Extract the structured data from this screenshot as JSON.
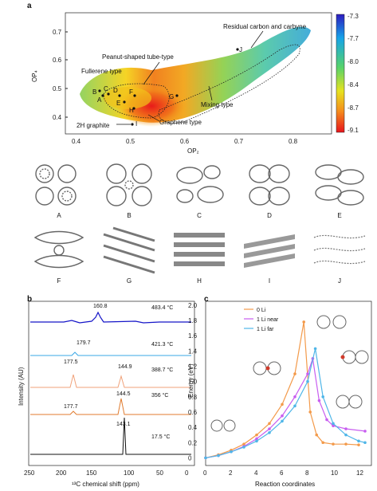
{
  "panel_a": {
    "letter": "a",
    "xlabel": "OP₂",
    "ylabel": "OP₄",
    "xticks": [
      "0.4",
      "0.5",
      "0.6",
      "0.7",
      "0.8"
    ],
    "yticks": [
      "0.4",
      "0.5",
      "0.6",
      "0.7"
    ],
    "colorbar_ticks": [
      "-7.3",
      "-7.7",
      "-8.0",
      "-8.4",
      "-8.7",
      "-9.1"
    ],
    "annotations": {
      "residual": "Residual carbon and carbyne",
      "peanut": "Peanut-shaped tube-type",
      "fullerene": "Fullerene type",
      "mixing": "Mixing type",
      "graphene": "Graphene type",
      "graphite": "2H graphite"
    },
    "points": [
      {
        "label": "A",
        "x": 0.445,
        "y": 0.47
      },
      {
        "label": "B",
        "x": 0.432,
        "y": 0.485
      },
      {
        "label": "C",
        "x": 0.455,
        "y": 0.495
      },
      {
        "label": "D",
        "x": 0.478,
        "y": 0.49
      },
      {
        "label": "E",
        "x": 0.49,
        "y": 0.46
      },
      {
        "label": "F",
        "x": 0.5,
        "y": 0.485
      },
      {
        "label": "G",
        "x": 0.575,
        "y": 0.47
      },
      {
        "label": "H",
        "x": 0.505,
        "y": 0.435
      },
      {
        "label": "I",
        "x": 0.505,
        "y": 0.395
      },
      {
        "label": "J",
        "x": 0.7,
        "y": 0.62
      }
    ]
  },
  "structures": {
    "row1": [
      "A",
      "B",
      "C",
      "D",
      "E"
    ],
    "row2": [
      "F",
      "G",
      "H",
      "I",
      "J"
    ]
  },
  "panel_b": {
    "letter": "b",
    "ylabel": "Intensity (AU)",
    "xlabel": "¹³C chemical shift (ppm)",
    "xticks": [
      "250",
      "200",
      "150",
      "100",
      "50",
      "0"
    ],
    "spectra": [
      {
        "temp": "483.4 °C",
        "color": "#1515c8",
        "peaks": [
          "160.8"
        ]
      },
      {
        "temp": "421.3 °C",
        "color": "#3aa7e6",
        "peaks": [
          "179.7"
        ]
      },
      {
        "temp": "388.7 °C",
        "color": "#f0a27a",
        "peaks": [
          "177.5",
          "144.9"
        ]
      },
      {
        "temp": "356 °C",
        "color": "#e07b2e",
        "peaks": [
          "177.7",
          "144.5"
        ]
      },
      {
        "temp": "17.5 °C",
        "color": "#111111",
        "peaks": [
          "143.1"
        ]
      }
    ]
  },
  "panel_c": {
    "letter": "c",
    "ylabel": "Energy (eV)",
    "xlabel": "Reaction coordinates",
    "xticks": [
      "0",
      "2",
      "4",
      "6",
      "8",
      "10",
      "12"
    ],
    "yticks": [
      "0",
      "0.2",
      "0.4",
      "0.6",
      "0.8",
      "1.0",
      "1.2",
      "1.4",
      "1.6",
      "1.8",
      "2.0"
    ],
    "legend": [
      {
        "name": "0 Li",
        "color": "#f39a4a",
        "marker": "down"
      },
      {
        "name": "1 Li near",
        "color": "#c85ef0",
        "marker": "down"
      },
      {
        "name": "1 Li far",
        "color": "#4fb6e8",
        "marker": "up"
      }
    ]
  },
  "chart_data": [
    {
      "type": "line",
      "xlabel": "Reaction coordinates",
      "ylabel": "Energy (eV)",
      "xlim": [
        0,
        13
      ],
      "ylim": [
        -0.1,
        2.05
      ],
      "series": [
        {
          "name": "0 Li",
          "x": [
            0,
            1,
            2,
            3,
            4,
            5,
            6,
            7,
            7.7,
            8.2,
            8.7,
            9.2,
            10,
            11,
            12
          ],
          "values": [
            0,
            0.04,
            0.1,
            0.18,
            0.3,
            0.45,
            0.7,
            1.1,
            1.78,
            0.6,
            0.3,
            0.2,
            0.18,
            0.18,
            0.17
          ]
        },
        {
          "name": "1 Li near",
          "x": [
            0,
            1,
            2,
            3,
            4,
            5,
            6,
            7,
            8,
            8.4,
            8.9,
            9.5,
            10,
            11,
            12.5
          ],
          "values": [
            0,
            0.03,
            0.08,
            0.15,
            0.25,
            0.38,
            0.55,
            0.8,
            1.1,
            1.3,
            0.75,
            0.5,
            0.42,
            0.38,
            0.35
          ]
        },
        {
          "name": "1 Li far",
          "x": [
            0,
            1,
            2,
            3,
            4,
            5,
            6,
            7,
            8,
            8.6,
            9.2,
            10,
            11,
            12,
            12.5
          ],
          "values": [
            0,
            0.03,
            0.08,
            0.14,
            0.22,
            0.33,
            0.48,
            0.68,
            1.0,
            1.43,
            0.8,
            0.45,
            0.3,
            0.22,
            0.2
          ]
        }
      ]
    }
  ]
}
